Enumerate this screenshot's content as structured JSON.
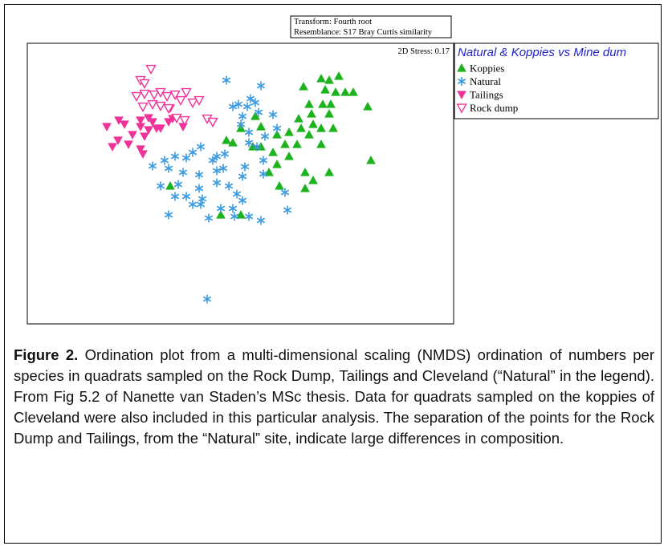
{
  "chart_data": {
    "type": "scatter",
    "transform": "Transform: Fourth root",
    "resemblance": "Resemblance: S17 Bray Curtis similarity",
    "stress": "2D Stress: 0.17",
    "legend_title": "Natural & Koppies vs Mine dum",
    "xlim": [
      0,
      531
    ],
    "ylim": [
      0,
      350
    ],
    "series": [
      {
        "name": "Koppies",
        "color": "#1db31d",
        "marker": "triangle-up",
        "x": [
          344,
          366,
          376,
          388,
          371,
          384,
          396,
          406,
          424,
          351,
          368,
          378,
          354,
          376,
          338,
          356,
          341,
          366,
          381,
          351,
          326,
          311,
          321,
          336,
          326,
          311,
          301,
          314,
          346,
          376,
          356,
          346,
          284,
          266,
          291,
          281,
          291,
          256,
          248,
          428,
          366,
          178,
          241,
          266,
          306
        ],
        "values": [
          296,
          306,
          304,
          309,
          292,
          289,
          289,
          289,
          271,
          274,
          274,
          274,
          262,
          262,
          256,
          249,
          244,
          244,
          244,
          236,
          239,
          236,
          224,
          224,
          209,
          199,
          189,
          172,
          189,
          189,
          179,
          169,
          259,
          244,
          246,
          221,
          221,
          226,
          229,
          204,
          224,
          172,
          136,
          136,
          214
        ]
      },
      {
        "name": "Natural",
        "color": "#3b9be2",
        "marker": "asterisk",
        "x": [
          248,
          291,
          278,
          284,
          274,
          263,
          256,
          268,
          266,
          288,
          306,
          311,
          296,
          276,
          276,
          286,
          246,
          236,
          231,
          216,
          206,
          198,
          184,
          171,
          156,
          176,
          194,
          214,
          236,
          244,
          271,
          294,
          294,
          268,
          251,
          261,
          268,
          236,
          214,
          218,
          198,
          184,
          206,
          216,
          188,
          166,
          176,
          226,
          241,
          256,
          276,
          291,
          258,
          324,
          321,
          224
        ],
        "values": [
          304,
          297,
          281,
          276,
          271,
          274,
          271,
          259,
          249,
          264,
          261,
          244,
          234,
          239,
          226,
          221,
          212,
          209,
          204,
          221,
          214,
          207,
          209,
          204,
          197,
          194,
          189,
          186,
          191,
          194,
          196,
          204,
          187,
          184,
          172,
          162,
          154,
          176,
          169,
          156,
          159,
          159,
          149,
          149,
          174,
          172,
          136,
          132,
          144,
          144,
          134,
          129,
          134,
          142,
          164,
          31
        ]
      },
      {
        "name": "Tailings",
        "color": "#ef3399",
        "marker": "triangle-down",
        "x": [
          99,
          114,
          113,
          126,
          131,
          141,
          146,
          156,
          161,
          141,
          151,
          166,
          176,
          181,
          194,
          178,
          141,
          144,
          121,
          106,
          151
        ],
        "values": [
          246,
          254,
          229,
          224,
          236,
          246,
          234,
          252,
          244,
          254,
          257,
          244,
          252,
          256,
          246,
          269,
          218,
          212,
          249,
          221,
          242
        ]
      },
      {
        "name": "Rock dump",
        "color": "#ef3399",
        "marker": "triangle-down-open",
        "x": [
          154,
          141,
          146,
          136,
          146,
          158,
          166,
          174,
          184,
          198,
          206,
          214,
          144,
          156,
          166,
          176,
          186,
          196,
          224,
          231,
          191
        ],
        "values": [
          318,
          304,
          300,
          284,
          287,
          286,
          289,
          284,
          286,
          289,
          276,
          279,
          271,
          274,
          272,
          269,
          257,
          254,
          256,
          252,
          279
        ]
      }
    ]
  },
  "caption": {
    "label": "Figure 2.",
    "text": "Ordination plot from a multi-dimensional scaling (NMDS) ordination of numbers per species in quadrats sampled on the Rock Dump, Tailings and Cleveland (“Natural” in the legend). From Fig 5.2 of Nanette van Staden’s MSc thesis. Data for quadrats sampled on the koppies of Cleveland were also included in this particular analysis. The separation of the points for the Rock Dump and Tailings, from the “Natural” site, indicate large differences in composition."
  }
}
